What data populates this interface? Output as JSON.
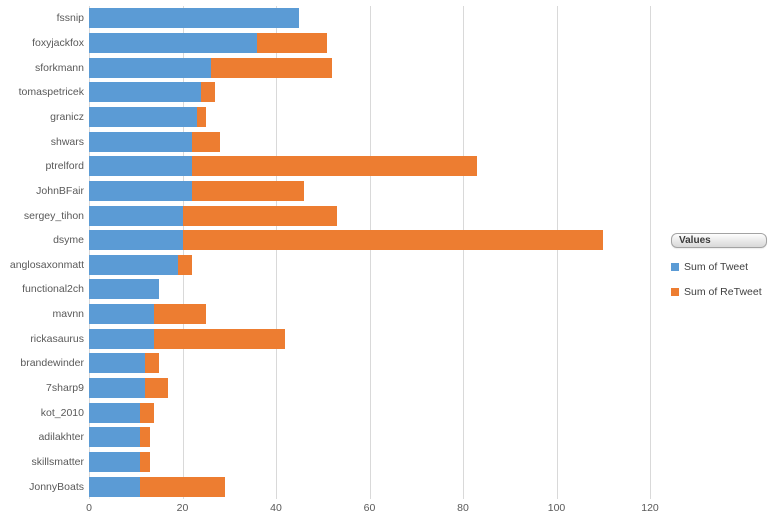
{
  "chart_data": {
    "type": "bar",
    "orientation": "horizontal",
    "stacked": true,
    "title": "",
    "xlabel": "",
    "ylabel": "",
    "xlim": [
      0,
      120
    ],
    "x_ticks": [
      0,
      20,
      40,
      60,
      80,
      100,
      120
    ],
    "grid": true,
    "legend_position": "right",
    "categories": [
      "fssnip",
      "foxyjackfox",
      "sforkmann",
      "tomaspetricek",
      "granicz",
      "shwars",
      "ptrelford",
      "JohnBFair",
      "sergey_tihon",
      "dsyme",
      "anglosaxonmatt",
      "functional2ch",
      "mavnn",
      "rickasaurus",
      "brandewinder",
      "7sharp9",
      "kot_2010",
      "adilakhter",
      "skillsmatter",
      "JonnyBoats"
    ],
    "series": [
      {
        "name": "Sum of Tweet",
        "color": "#5B9BD5",
        "values": [
          45,
          36,
          26,
          24,
          23,
          22,
          22,
          22,
          20,
          20,
          19,
          15,
          14,
          14,
          12,
          12,
          11,
          11,
          11,
          11
        ]
      },
      {
        "name": "Sum of ReTweet",
        "color": "#ED7D31",
        "values": [
          0,
          15,
          26,
          3,
          2,
          6,
          61,
          24,
          33,
          90,
          3,
          0,
          11,
          28,
          3,
          5,
          3,
          2,
          2,
          18
        ]
      }
    ]
  },
  "legend": {
    "field_button_label": "Values",
    "items": [
      {
        "label": "Sum of Tweet",
        "color": "#5B9BD5"
      },
      {
        "label": "Sum of ReTweet",
        "color": "#ED7D31"
      }
    ]
  },
  "colors": {
    "background": "#FFFFFF",
    "gridline": "#D9D9D9",
    "axis_text": "#595959",
    "category_text": "#595959",
    "tweet_series": "#5B9BD5",
    "retweet_series": "#ED7D31"
  }
}
